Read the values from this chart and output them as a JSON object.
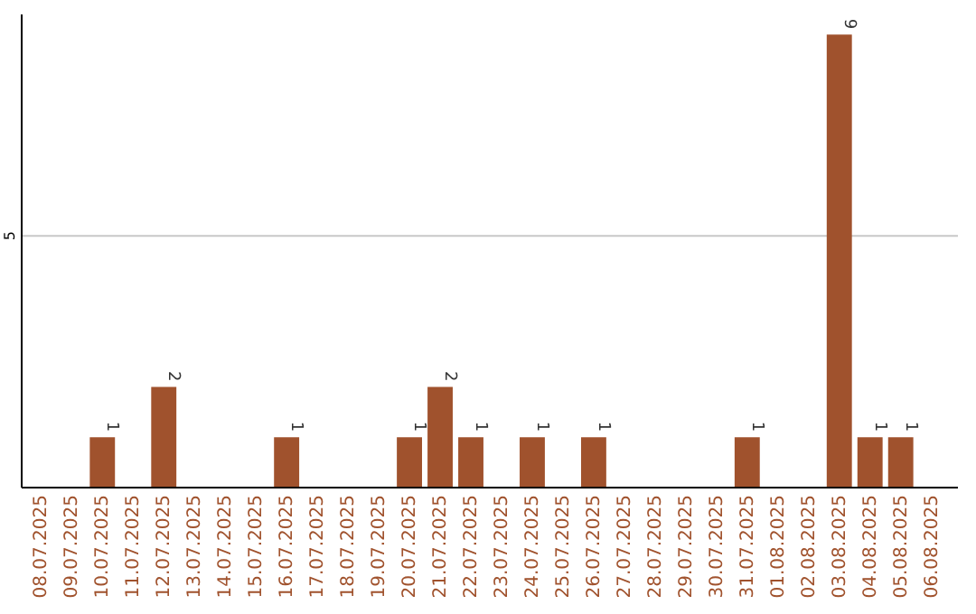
{
  "chart_data": {
    "type": "bar",
    "categories": [
      "08.07.2025",
      "09.07.2025",
      "10.07.2025",
      "11.07.2025",
      "12.07.2025",
      "13.07.2025",
      "14.07.2025",
      "15.07.2025",
      "16.07.2025",
      "17.07.2025",
      "18.07.2025",
      "19.07.2025",
      "20.07.2025",
      "21.07.2025",
      "22.07.2025",
      "23.07.2025",
      "24.07.2025",
      "25.07.2025",
      "26.07.2025",
      "27.07.2025",
      "28.07.2025",
      "29.07.2025",
      "30.07.2025",
      "31.07.2025",
      "01.08.2025",
      "02.08.2025",
      "03.08.2025",
      "04.08.2025",
      "05.08.2025",
      "06.08.2025"
    ],
    "values": [
      0,
      0,
      1,
      0,
      2,
      0,
      0,
      0,
      1,
      0,
      0,
      0,
      1,
      2,
      1,
      0,
      1,
      0,
      1,
      0,
      0,
      0,
      0,
      1,
      0,
      0,
      9,
      1,
      1,
      0
    ],
    "value_labels": [
      null,
      null,
      "1",
      null,
      "2",
      null,
      null,
      null,
      "1",
      null,
      null,
      null,
      "1",
      "2",
      "1",
      null,
      "1",
      null,
      "1",
      null,
      null,
      null,
      null,
      "1",
      null,
      null,
      "9",
      "1",
      "1",
      null
    ],
    "color": "#a0522d",
    "ylim": [
      0,
      9.4
    ],
    "yticks": [
      5
    ],
    "grid": "y"
  }
}
